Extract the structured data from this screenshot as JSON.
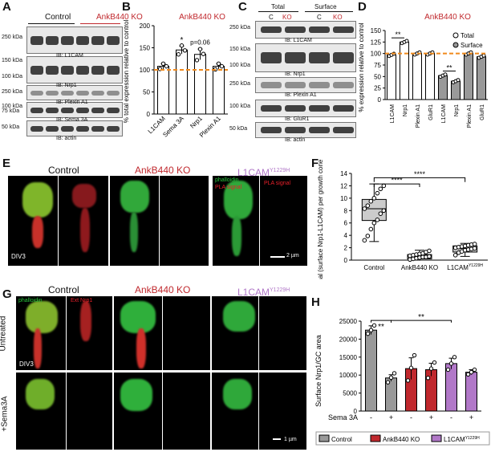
{
  "figure": {
    "panel_labels": [
      "A",
      "B",
      "C",
      "D",
      "E",
      "F",
      "G",
      "H"
    ],
    "colors": {
      "ankb_red": "#c0282d",
      "l1cam_purple": "#b178c8",
      "control_gray": "#999999",
      "orange_ref": "#f08a1c",
      "phalloidin_green": "#2ec42e",
      "signal_red": "#e8202a"
    }
  },
  "panelA": {
    "group_control": "Control",
    "group_ko": "AnkB440 KO",
    "blots": [
      {
        "ib": "IB: L1CAM",
        "markers": [
          "250 kDa"
        ]
      },
      {
        "ib": "IB: Nrp1",
        "markers": [
          "150 kDa",
          "100 kDa"
        ]
      },
      {
        "ib": "IB: Plexin A1",
        "markers": [
          "250 kDa"
        ]
      },
      {
        "ib": "IB: Sema 3A",
        "markers": [
          "100 kDa",
          "75 kDa"
        ]
      },
      {
        "ib": "IB: actin",
        "markers": [
          "50 kDa"
        ]
      }
    ]
  },
  "panelB": {
    "title": "AnkB440 KO",
    "ylabel": "% total expression relative to control",
    "annot_star": "*",
    "annot_p": "p=0.06"
  },
  "panelC": {
    "total": "Total",
    "surface": "Surface",
    "lane_c": "C",
    "lane_ko": "KO",
    "blots": [
      {
        "ib": "IB: L1CAM",
        "markers": [
          "250 kDa"
        ]
      },
      {
        "ib": "IB: Nrp1",
        "markers": [
          "150 kDa",
          "100 kDa"
        ]
      },
      {
        "ib": "IB: Plexin A1",
        "markers": [
          "250 kDa"
        ]
      },
      {
        "ib": "IB: GluR1",
        "markers": [
          "100 kDa"
        ]
      },
      {
        "ib": "IB: actin",
        "markers": [
          "50 kDa"
        ]
      }
    ]
  },
  "panelD": {
    "title": "AnkB440 KO",
    "ylabel": "% expression relative to control",
    "legend_total": "Total",
    "legend_surface": "Surface",
    "annot1": "**",
    "annot2": "**"
  },
  "panelE": {
    "control": "Control",
    "ko": "AnkB440 KO",
    "l1cam": "L1CAM",
    "l1cam_sup": "Y1229H",
    "legend_phalloidin": "phalloidin",
    "legend_pla": "PLA signal",
    "legend_pla2": "PLA signal",
    "div": "DIV3",
    "scale": "2 µm"
  },
  "panelF": {
    "ylabel": "PLA signal (surface Nrp1-L1CAM) per growth cone area (A.U.)",
    "xcat_sup": "Y1229H",
    "sig1": "****",
    "sig2": "****"
  },
  "panelG": {
    "control": "Control",
    "ko": "AnkB440 KO",
    "l1cam": "L1CAM",
    "l1cam_sup": "Y1229H",
    "legend_phalloidin": "phalloidin",
    "legend_nrp1": "Ext Nrp1",
    "row1": "Untreated",
    "row2": "+Sema3A",
    "div": "DIV3",
    "scale": "1 µm"
  },
  "panelH": {
    "ylabel": "Surface Nrp1/GC area",
    "sema_label": "Sema 3A",
    "treat_labels": [
      "-",
      "+",
      "-",
      "+",
      "-",
      "+"
    ],
    "sig1": "**",
    "sig2": "**",
    "legend": [
      {
        "name": "Control",
        "color": "#999999"
      },
      {
        "name": "AnkB440 KO",
        "color": "#c0282d"
      },
      {
        "name": "L1CAM",
        "sup": "Y1229H",
        "color": "#b178c8"
      }
    ]
  },
  "chart_data": [
    {
      "panel": "B",
      "type": "bar",
      "title": "AnkB440 KO",
      "ylabel": "% total expression relative to control",
      "categories": [
        "L1CAM",
        "Sema 3A",
        "Nrp1",
        "Plexin A1"
      ],
      "values": [
        108,
        145,
        135,
        108
      ],
      "errors": [
        6,
        9,
        12,
        6
      ],
      "points": [
        [
          102,
          114,
          108
        ],
        [
          135,
          155,
          144
        ],
        [
          122,
          147,
          136
        ],
        [
          101,
          114,
          108
        ]
      ],
      "yticks": [
        0,
        50,
        100,
        150,
        200
      ],
      "ylim": [
        0,
        200
      ],
      "reference_line": 100
    },
    {
      "panel": "D",
      "type": "bar",
      "title": "AnkB440 KO",
      "ylabel": "% expression relative to control",
      "categories": [
        "L1CAM",
        "Nrp1",
        "Plexin A1",
        "GluR1",
        "L1CAM",
        "Nrp1",
        "Plexin A1",
        "GluR1"
      ],
      "series": [
        {
          "name": "Total",
          "values": [
            97,
            125,
            100,
            100,
            null,
            null,
            null,
            null
          ]
        },
        {
          "name": "Surface",
          "values": [
            null,
            null,
            null,
            null,
            52,
            40,
            100,
            93
          ]
        }
      ],
      "errors": [
        4,
        3,
        3,
        2,
        3,
        3,
        3,
        3
      ],
      "yticks": [
        0,
        25,
        50,
        75,
        100,
        125,
        150
      ],
      "ylim": [
        0,
        150
      ],
      "reference_line": 100
    },
    {
      "panel": "F",
      "type": "box",
      "ylabel": "PLA signal (surface Nrp1-L1CAM) per growth cone area (A.U.)",
      "categories": [
        "Control",
        "AnkB440 KO",
        "L1CAM"
      ],
      "box": [
        {
          "min": 3.0,
          "q1": 6.4,
          "median": 8.3,
          "q3": 9.8,
          "max": 12.3
        },
        {
          "min": 0.0,
          "q1": 0.2,
          "median": 0.6,
          "q3": 0.9,
          "max": 1.6
        },
        {
          "min": 0.6,
          "q1": 1.3,
          "median": 1.9,
          "q3": 2.3,
          "max": 2.7
        }
      ],
      "points": [
        [
          3.2,
          3.9,
          5.0,
          6.0,
          6.5,
          7.5,
          8.0,
          8.3,
          8.8,
          9.5,
          10.0,
          10.8,
          11.5,
          12.0
        ],
        [
          0.1,
          0.2,
          0.3,
          0.4,
          0.5,
          0.5,
          0.6,
          0.7,
          0.8,
          0.9,
          1.0,
          1.1,
          1.3,
          1.5
        ],
        [
          0.8,
          1.2,
          1.4,
          1.6,
          1.7,
          1.8,
          1.9,
          2.0,
          2.1,
          2.2,
          2.3,
          2.4,
          2.5,
          2.6
        ]
      ],
      "yticks": [
        0,
        2,
        4,
        6,
        8,
        10,
        12,
        14
      ],
      "ylim": [
        0,
        14
      ]
    },
    {
      "panel": "H",
      "type": "bar",
      "ylabel": "Surface Nrp1/GC area",
      "groups": [
        "Control",
        "AnkB440 KO",
        "L1CAM"
      ],
      "categories": [
        "-",
        "+",
        "-",
        "+",
        "-",
        "+"
      ],
      "values": [
        22500,
        9200,
        11800,
        11500,
        13200,
        10800
      ],
      "errors": [
        1200,
        900,
        3000,
        1800,
        1500,
        700
      ],
      "points": [
        [
          21500,
          22500,
          23800
        ],
        [
          8000,
          9300,
          10500
        ],
        [
          8500,
          12000,
          15500
        ],
        [
          9200,
          11800,
          13500
        ],
        [
          11500,
          13200,
          15000
        ],
        [
          10200,
          10800,
          11500
        ]
      ],
      "yticks": [
        0,
        5000,
        10000,
        15000,
        20000,
        25000
      ],
      "ylim": [
        0,
        25000
      ]
    }
  ]
}
